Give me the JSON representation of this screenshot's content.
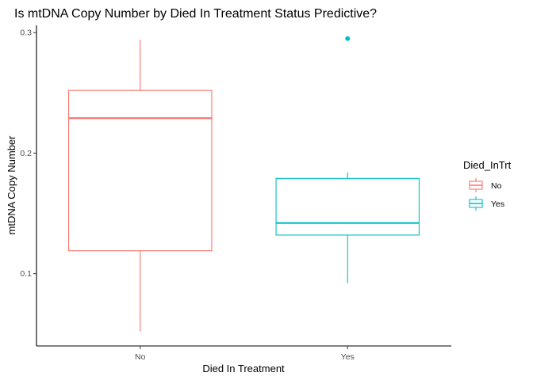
{
  "chart_data": {
    "type": "box",
    "title": "Is mtDNA Copy Number by Died In Treatment Status Predictive?",
    "xlabel": "Died In Treatment",
    "ylabel": "mtDNA Copy Number",
    "categories": [
      "No",
      "Yes"
    ],
    "ylim": [
      0.04,
      0.306
    ],
    "yticks": [
      0.1,
      0.2,
      0.3
    ],
    "ytick_labels": [
      "0.1",
      "0.2",
      "0.3"
    ],
    "grid": false,
    "legend": {
      "title": "Died_InTrt",
      "position": "right",
      "entries": [
        {
          "label": "No",
          "color": "#F8766D"
        },
        {
          "label": "Yes",
          "color": "#00BFC4"
        }
      ]
    },
    "series": [
      {
        "category": "No",
        "color": "#F8766D",
        "min": 0.052,
        "q1": 0.119,
        "median": 0.229,
        "q3": 0.252,
        "max": 0.294,
        "outliers": []
      },
      {
        "category": "Yes",
        "color": "#00BFC4",
        "min": 0.092,
        "q1": 0.132,
        "median": 0.142,
        "q3": 0.179,
        "max": 0.184,
        "outliers": [
          0.295
        ]
      }
    ]
  }
}
